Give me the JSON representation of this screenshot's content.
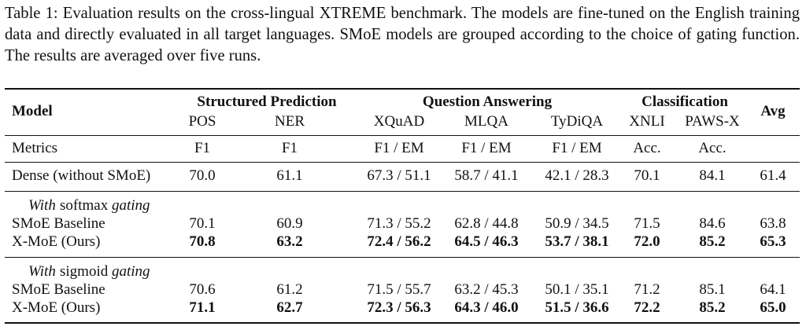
{
  "caption": "Table 1: Evaluation results on the cross-lingual XTREME benchmark. The models are fine-tuned on the English training data and directly evaluated in all target languages. SMoE models are grouped according to the choice of gating function. The results are averaged over five runs.",
  "table": {
    "model_header": "Model",
    "avg_header": "Avg",
    "groups": [
      {
        "label": "Structured Prediction",
        "columns": [
          "POS",
          "NER"
        ]
      },
      {
        "label": "Question Answering",
        "columns": [
          "XQuAD",
          "MLQA",
          "TyDiQA"
        ]
      },
      {
        "label": "Classification",
        "columns": [
          "XNLI",
          "PAWS-X"
        ]
      }
    ],
    "metrics": {
      "label": "Metrics",
      "cells": [
        "F1",
        "F1",
        "F1 / EM",
        "F1 / EM",
        "F1 / EM",
        "Acc.",
        "Acc."
      ]
    },
    "dense": {
      "name": "Dense (without SMoE)",
      "cells": [
        "70.0",
        "61.1",
        "67.3 / 51.1",
        "58.7 / 41.1",
        "42.1 / 28.3",
        "70.1",
        "84.1",
        "61.4"
      ]
    },
    "sections": [
      {
        "prefix": "With",
        "gate": "softmax",
        "suffix": "gating",
        "rows": [
          {
            "name": "SMoE Baseline",
            "bold": false,
            "cells": [
              "70.1",
              "60.9",
              "71.3 / 55.2",
              "62.8 / 44.8",
              "50.9 / 34.5",
              "71.5",
              "84.6",
              "63.8"
            ]
          },
          {
            "name": "X-MoE (Ours)",
            "bold": true,
            "cells": [
              "70.8",
              "63.2",
              "72.4 / 56.2",
              "64.5 / 46.3",
              "53.7 / 38.1",
              "72.0",
              "85.2",
              "65.3"
            ]
          }
        ]
      },
      {
        "prefix": "With",
        "gate": "sigmoid",
        "suffix": "gating",
        "rows": [
          {
            "name": "SMoE Baseline",
            "bold": false,
            "cells": [
              "70.6",
              "61.2",
              "71.5 / 55.7",
              "63.2 / 45.3",
              "50.1 / 35.1",
              "71.2",
              "85.1",
              "64.1"
            ]
          },
          {
            "name": "X-MoE (Ours)",
            "bold": true,
            "cells": [
              "71.1",
              "62.7",
              "72.3 / 56.3",
              "64.3 / 46.0",
              "51.5 / 36.6",
              "72.2",
              "85.2",
              "65.0"
            ]
          }
        ]
      }
    ]
  }
}
